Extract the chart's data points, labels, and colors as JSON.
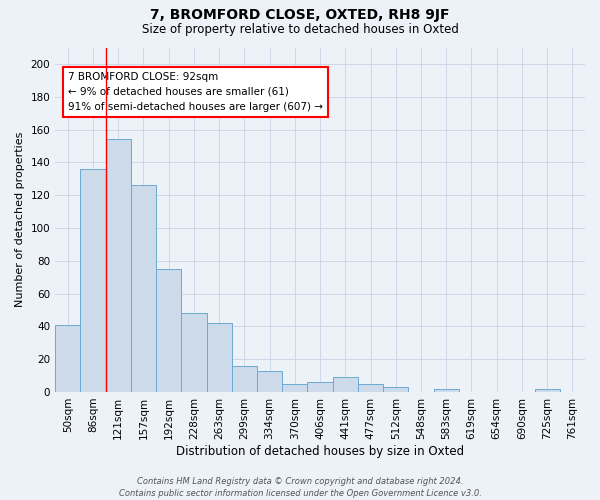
{
  "title": "7, BROMFORD CLOSE, OXTED, RH8 9JF",
  "subtitle": "Size of property relative to detached houses in Oxted",
  "xlabel": "Distribution of detached houses by size in Oxted",
  "ylabel": "Number of detached properties",
  "bin_labels": [
    "50sqm",
    "86sqm",
    "121sqm",
    "157sqm",
    "192sqm",
    "228sqm",
    "263sqm",
    "299sqm",
    "334sqm",
    "370sqm",
    "406sqm",
    "441sqm",
    "477sqm",
    "512sqm",
    "548sqm",
    "583sqm",
    "619sqm",
    "654sqm",
    "690sqm",
    "725sqm",
    "761sqm"
  ],
  "bar_heights": [
    41,
    136,
    154,
    126,
    75,
    48,
    42,
    16,
    13,
    5,
    6,
    9,
    5,
    3,
    0,
    2,
    0,
    0,
    0,
    2,
    0
  ],
  "bar_color": "#ccdaea",
  "bar_edge_color": "#6aaad4",
  "grid_color": "#ccd8e8",
  "background_color": "#edf1f8",
  "red_line_x": 1.5,
  "annotation_text": "7 BROMFORD CLOSE: 92sqm\n← 9% of detached houses are smaller (61)\n91% of semi-detached houses are larger (607) →",
  "annotation_box_color": "white",
  "annotation_box_edge": "red",
  "footer": "Contains HM Land Registry data © Crown copyright and database right 2024.\nContains public sector information licensed under the Open Government Licence v3.0.",
  "ylim": [
    0,
    210
  ],
  "yticks": [
    0,
    20,
    40,
    60,
    80,
    100,
    120,
    140,
    160,
    180,
    200
  ],
  "title_fontsize": 10,
  "subtitle_fontsize": 8.5,
  "ylabel_fontsize": 8,
  "xlabel_fontsize": 8.5,
  "tick_fontsize": 7.5,
  "footer_fontsize": 6,
  "annotation_fontsize": 7.5
}
